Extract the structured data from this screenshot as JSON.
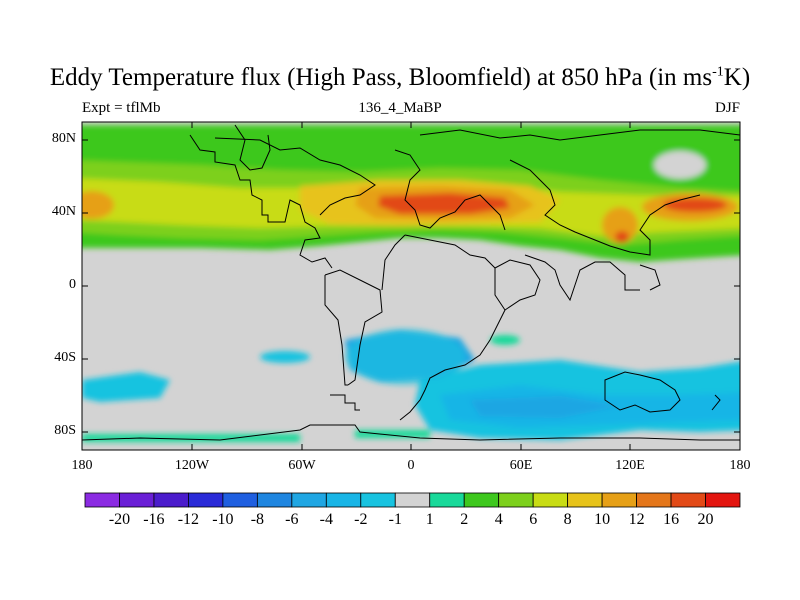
{
  "title": {
    "main": "Eddy Temperature flux (High Pass, Bloomfield) at 850 hPa (in ms",
    "exp": "-1",
    "unit_tail": "K)"
  },
  "subtitles": {
    "left": "Expt = tflMb",
    "center": "136_4_MaBP",
    "right": "DJF"
  },
  "axes": {
    "lat_labels": [
      "80N",
      "40N",
      "0",
      "40S",
      "80S"
    ],
    "lon_labels": [
      "180",
      "120W",
      "60W",
      "0",
      "60E",
      "120E",
      "180"
    ]
  },
  "colorbar": {
    "labels": [
      "-20",
      "-16",
      "-12",
      "-10",
      "-8",
      "-6",
      "-4",
      "-2",
      "-1",
      "1",
      "2",
      "4",
      "6",
      "8",
      "10",
      "12",
      "16",
      "20"
    ],
    "colors": [
      "#8b2be2",
      "#6a1fd6",
      "#4b1ccc",
      "#2a2bd8",
      "#1f5fe0",
      "#1f86e0",
      "#1fa6e3",
      "#19b5e6",
      "#18c3e0",
      "#d3d3d3",
      "#19d99a",
      "#3ec81e",
      "#7dd01c",
      "#c8dc14",
      "#e7c31a",
      "#e6a017",
      "#e4761a",
      "#e24a17",
      "#e3150f"
    ]
  },
  "map": {
    "background": "#d3d3d3",
    "border_color": "#000000"
  }
}
